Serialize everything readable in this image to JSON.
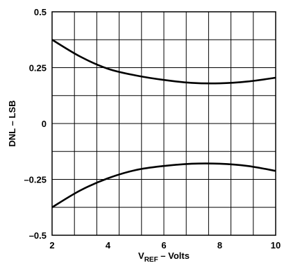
{
  "chart_data": {
    "type": "line",
    "title": "",
    "xlabel": "V",
    "xlabel_subscript": "REF",
    "xlabel_suffix": " – Volts",
    "ylabel": "DNL – LSB",
    "xlim": [
      2,
      10
    ],
    "ylim": [
      -0.5,
      0.5
    ],
    "grid": true,
    "x_ticks": [
      2,
      4,
      6,
      8,
      10
    ],
    "x_tick_labels": [
      "2",
      "4",
      "6",
      "8",
      "10"
    ],
    "y_ticks": [
      0.5,
      0.25,
      0,
      -0.25,
      -0.5
    ],
    "y_tick_labels": [
      "0.5",
      "0.25",
      "0",
      "–0.25",
      "–0.5"
    ],
    "series": [
      {
        "x": [
          2,
          3,
          4,
          5,
          6,
          7,
          8,
          9,
          10
        ],
        "y": [
          0.375,
          0.3,
          0.245,
          0.215,
          0.195,
          0.182,
          0.18,
          0.188,
          0.205
        ]
      },
      {
        "x": [
          2,
          3,
          4,
          5,
          6,
          7,
          8,
          9,
          10
        ],
        "y": [
          -0.375,
          -0.3,
          -0.245,
          -0.208,
          -0.19,
          -0.18,
          -0.18,
          -0.19,
          -0.212
        ]
      }
    ]
  }
}
